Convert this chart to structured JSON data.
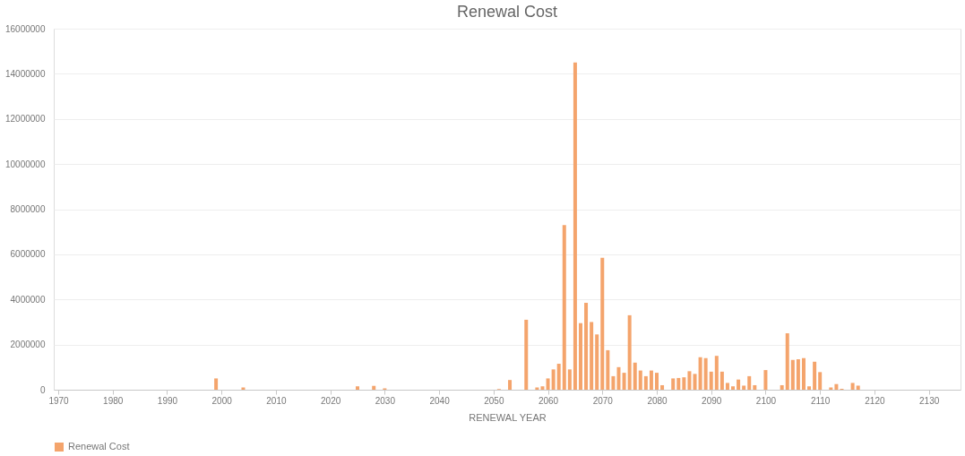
{
  "chart_data": {
    "type": "bar",
    "title": "Renewal Cost",
    "xlabel": "RENEWAL YEAR",
    "x": [
      1999,
      2004,
      2025,
      2028,
      2030,
      2051,
      2053,
      2056,
      2058,
      2059,
      2060,
      2061,
      2062,
      2063,
      2064,
      2065,
      2066,
      2067,
      2068,
      2069,
      2070,
      2071,
      2072,
      2073,
      2074,
      2075,
      2076,
      2077,
      2078,
      2079,
      2080,
      2081,
      2083,
      2084,
      2085,
      2086,
      2087,
      2088,
      2089,
      2090,
      2091,
      2092,
      2093,
      2094,
      2095,
      2096,
      2097,
      2098,
      2100,
      2103,
      2104,
      2105,
      2106,
      2107,
      2108,
      2109,
      2110,
      2112,
      2113,
      2114,
      2116,
      2117
    ],
    "series": [
      {
        "name": "Renewal Cost",
        "color": "#f4a46c",
        "values": [
          500000,
          100000,
          150000,
          170000,
          60000,
          30000,
          430000,
          3100000,
          100000,
          150000,
          500000,
          900000,
          1150000,
          7300000,
          900000,
          14500000,
          2950000,
          3850000,
          3000000,
          2450000,
          5850000,
          1750000,
          600000,
          1000000,
          750000,
          3300000,
          1200000,
          850000,
          600000,
          850000,
          750000,
          200000,
          500000,
          520000,
          550000,
          820000,
          700000,
          1440000,
          1400000,
          800000,
          1500000,
          800000,
          300000,
          150000,
          450000,
          180000,
          600000,
          200000,
          870000,
          200000,
          2500000,
          1320000,
          1350000,
          1400000,
          150000,
          1240000,
          780000,
          100000,
          250000,
          40000,
          300000,
          180000
        ]
      }
    ],
    "xlim": [
      1970,
      2135
    ],
    "xticks": [
      1970,
      1980,
      1990,
      2000,
      2010,
      2020,
      2030,
      2040,
      2050,
      2060,
      2070,
      2080,
      2090,
      2100,
      2110,
      2120,
      2130
    ],
    "ylim": [
      0,
      16000000
    ],
    "yticks": [
      0,
      2000000,
      4000000,
      6000000,
      8000000,
      10000000,
      12000000,
      14000000,
      16000000
    ],
    "grid": "y",
    "legend": "bottom"
  }
}
